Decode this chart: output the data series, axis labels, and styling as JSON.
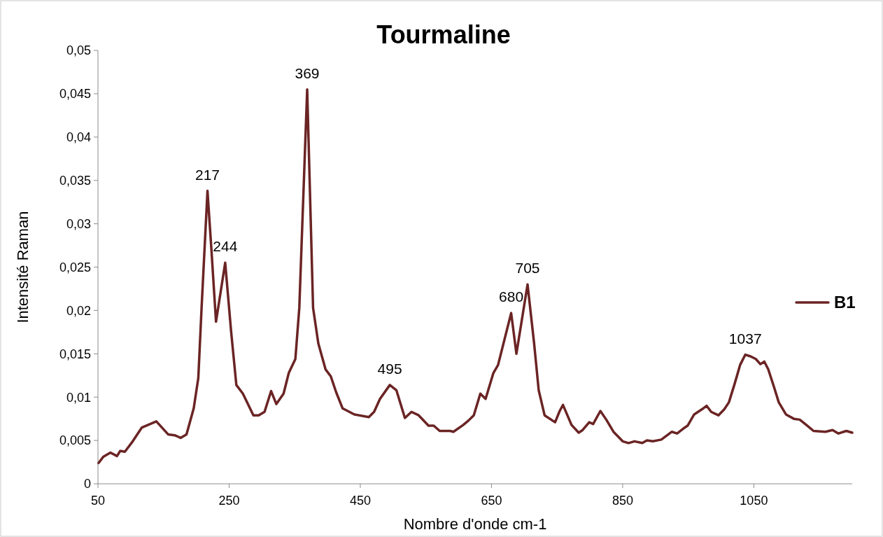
{
  "chart_data": {
    "type": "line",
    "title": "Tourmaline",
    "xlabel": "Nombre d'onde cm-1",
    "ylabel": "Intensité Raman",
    "xlim": [
      50,
      1200
    ],
    "xticks": [
      50,
      250,
      450,
      650,
      850,
      1050
    ],
    "ylim": [
      0,
      0.05
    ],
    "yticks": [
      {
        "value": 0,
        "label": "0"
      },
      {
        "value": 0.005,
        "label": "0,005"
      },
      {
        "value": 0.01,
        "label": "0,01"
      },
      {
        "value": 0.015,
        "label": "0,015"
      },
      {
        "value": 0.02,
        "label": "0,02"
      },
      {
        "value": 0.025,
        "label": "0,025"
      },
      {
        "value": 0.03,
        "label": "0,03"
      },
      {
        "value": 0.035,
        "label": "0,035"
      },
      {
        "value": 0.04,
        "label": "0,04"
      },
      {
        "value": 0.045,
        "label": "0,045"
      },
      {
        "value": 0.05,
        "label": "0,05"
      }
    ],
    "grid": false,
    "legend": "right",
    "marker": "none",
    "line_style": "solid",
    "series": [
      {
        "name": "B1",
        "color": "#6b2424",
        "x": [
          51,
          58,
          69,
          79,
          84,
          91,
          103,
          117,
          139,
          157,
          167,
          176,
          185,
          196,
          203,
          208,
          217,
          223,
          230,
          244,
          253,
          261,
          271,
          287,
          295,
          304,
          314,
          322,
          333,
          341,
          351,
          357,
          369,
          378,
          386,
          397,
          405,
          413,
          423,
          441,
          463,
          471,
          480,
          495,
          505,
          518,
          528,
          539,
          554,
          562,
          571,
          587,
          592,
          607,
          615,
          623,
          633,
          641,
          653,
          660,
          680,
          688,
          705,
          715,
          722,
          731,
          747,
          754,
          759,
          772,
          783,
          789,
          799,
          805,
          816,
          825,
          836,
          850,
          859,
          868,
          880,
          887,
          896,
          909,
          925,
          933,
          943,
          949,
          959,
          971,
          978,
          985,
          996,
          1005,
          1012,
          1021,
          1029,
          1037,
          1045,
          1053,
          1060,
          1066,
          1072,
          1081,
          1088,
          1099,
          1111,
          1120,
          1130,
          1141,
          1159,
          1170,
          1179,
          1191,
          1200
        ],
        "values": [
          0.0024,
          0.0031,
          0.0036,
          0.0032,
          0.0038,
          0.0037,
          0.0049,
          0.0065,
          0.0072,
          0.0057,
          0.0056,
          0.0053,
          0.0057,
          0.0087,
          0.0122,
          0.0203,
          0.0338,
          0.027,
          0.0187,
          0.0255,
          0.0176,
          0.0114,
          0.0104,
          0.0079,
          0.0079,
          0.0083,
          0.0107,
          0.0092,
          0.0104,
          0.0128,
          0.0144,
          0.0203,
          0.0455,
          0.0203,
          0.0162,
          0.0132,
          0.0124,
          0.0106,
          0.0087,
          0.008,
          0.0077,
          0.0083,
          0.0098,
          0.0114,
          0.0108,
          0.0076,
          0.0083,
          0.0079,
          0.0067,
          0.0067,
          0.0061,
          0.0061,
          0.006,
          0.0068,
          0.0073,
          0.0079,
          0.0104,
          0.0098,
          0.0128,
          0.0137,
          0.0197,
          0.015,
          0.023,
          0.0162,
          0.0108,
          0.0079,
          0.0071,
          0.0084,
          0.0091,
          0.0068,
          0.0059,
          0.0062,
          0.0071,
          0.0069,
          0.0084,
          0.0074,
          0.006,
          0.0049,
          0.0047,
          0.0049,
          0.0047,
          0.005,
          0.0049,
          0.0051,
          0.006,
          0.0058,
          0.0064,
          0.0067,
          0.008,
          0.0086,
          0.009,
          0.0083,
          0.0079,
          0.0086,
          0.0094,
          0.0116,
          0.0137,
          0.0149,
          0.0147,
          0.0144,
          0.0138,
          0.0141,
          0.0132,
          0.0111,
          0.0094,
          0.008,
          0.0075,
          0.0074,
          0.0068,
          0.0061,
          0.006,
          0.0062,
          0.0058,
          0.0061,
          0.0059
        ]
      }
    ],
    "annotations": [
      {
        "text": "217",
        "x": 217,
        "y": 0.0338
      },
      {
        "text": "244",
        "x": 244,
        "y": 0.0255
      },
      {
        "text": "369",
        "x": 369,
        "y": 0.0455
      },
      {
        "text": "495",
        "x": 495,
        "y": 0.0114
      },
      {
        "text": "680",
        "x": 680,
        "y": 0.0197
      },
      {
        "text": "705",
        "x": 705,
        "y": 0.023
      },
      {
        "text": "1037",
        "x": 1037,
        "y": 0.0149
      }
    ]
  }
}
